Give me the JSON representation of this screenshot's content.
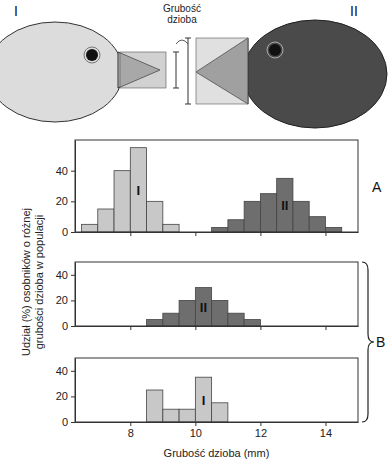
{
  "illustration": {
    "label": "Grubość dzioba",
    "heads": [
      "I",
      "II"
    ]
  },
  "ylabel": "Udział (%) osobników o różnej grubości dzioba w populacji",
  "xlabel": "Grubość dzioba (mm)",
  "panel_labels": [
    "A",
    "B"
  ],
  "chart_data": [
    {
      "type": "histogram",
      "xlim": [
        6.3,
        15
      ],
      "xticks": [
        8,
        10,
        12,
        14
      ],
      "ylim": [
        0,
        60
      ],
      "yticks": [
        0,
        20,
        40
      ],
      "tick_labels": "y",
      "series": [
        {
          "name": "I",
          "color": "#c8c8c8",
          "bins": [
            6.5,
            7,
            7.5,
            8,
            8.5,
            9,
            9.5
          ],
          "values": [
            5,
            15,
            40,
            55,
            20,
            5
          ]
        },
        {
          "name": "II",
          "color": "#6e6e6e",
          "bins": [
            10.5,
            11,
            11.5,
            12,
            12.5,
            13,
            13.5,
            14,
            14.5
          ],
          "values": [
            3,
            8,
            20,
            25,
            35,
            20,
            10,
            3
          ]
        }
      ]
    },
    {
      "type": "histogram",
      "xlim": [
        6.3,
        15
      ],
      "xticks": [
        8,
        10,
        12,
        14
      ],
      "ylim": [
        0,
        50
      ],
      "yticks": [
        0,
        20,
        40
      ],
      "tick_labels": "y",
      "series": [
        {
          "name": "II",
          "color": "#6e6e6e",
          "bins": [
            8.5,
            9,
            9.5,
            10,
            10.5,
            11,
            11.5,
            12
          ],
          "values": [
            5,
            10,
            20,
            30,
            20,
            10,
            5
          ]
        }
      ]
    },
    {
      "type": "histogram",
      "xlim": [
        6.3,
        15
      ],
      "xticks": [
        8,
        10,
        12,
        14
      ],
      "ylim": [
        0,
        50
      ],
      "yticks": [
        0,
        20,
        40
      ],
      "series": [
        {
          "name": "I",
          "color": "#c8c8c8",
          "bins": [
            8.5,
            9,
            9.5,
            10,
            10.5,
            11
          ],
          "values": [
            25,
            10,
            10,
            35,
            15
          ]
        }
      ]
    }
  ]
}
